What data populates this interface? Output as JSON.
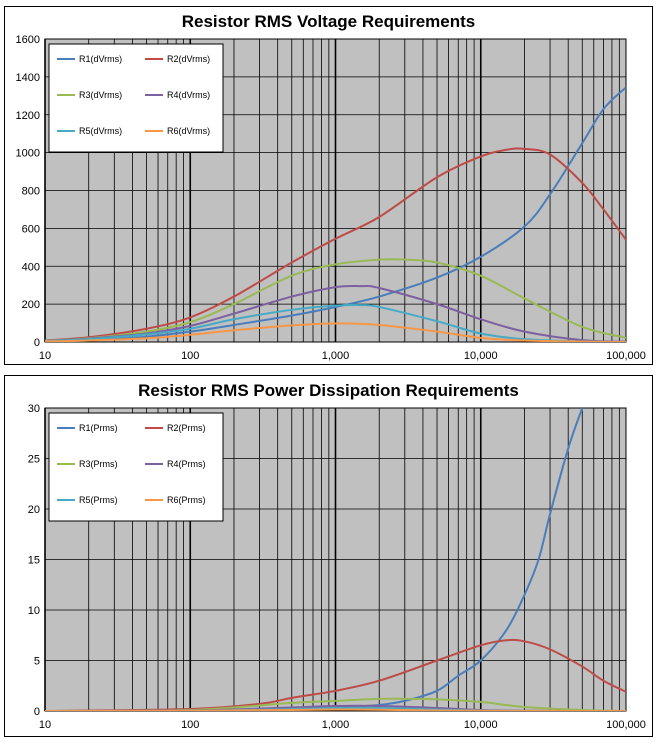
{
  "chart_data": [
    {
      "type": "line",
      "title": "Resistor RMS Voltage Requirements",
      "xscale": "log",
      "xlim": [
        10,
        100000
      ],
      "ylim": [
        0,
        1600
      ],
      "xticks": [
        10,
        100,
        1000,
        10000,
        100000
      ],
      "xtick_labels": [
        "10",
        "100",
        "1,000",
        "10,000",
        "100,000"
      ],
      "yticks": [
        0,
        200,
        400,
        600,
        800,
        1000,
        1200,
        1400,
        1600
      ],
      "ytick_labels": [
        "0",
        "200",
        "400",
        "600",
        "800",
        "1000",
        "1200",
        "1400",
        "1600"
      ],
      "grid": true,
      "legend_position": "top-left",
      "series": [
        {
          "name": "R1(dVrms)",
          "color": "#4a7ebb",
          "x": [
            10,
            20,
            50,
            100,
            200,
            500,
            1000,
            2000,
            5000,
            10000,
            20000,
            30000,
            50000,
            70000,
            100000
          ],
          "values": [
            3,
            8,
            28,
            55,
            90,
            140,
            185,
            240,
            340,
            450,
            610,
            780,
            1050,
            1230,
            1345
          ]
        },
        {
          "name": "R2(dVrms)",
          "color": "#be4b48",
          "x": [
            10,
            20,
            50,
            100,
            200,
            500,
            1000,
            2000,
            5000,
            10000,
            15000,
            20000,
            30000,
            50000,
            70000,
            100000
          ],
          "values": [
            8,
            25,
            70,
            130,
            240,
            420,
            545,
            660,
            870,
            980,
            1015,
            1020,
            990,
            840,
            700,
            540
          ]
        },
        {
          "name": "R3(dVrms)",
          "color": "#98b954",
          "x": [
            10,
            20,
            50,
            100,
            200,
            500,
            1000,
            2000,
            3000,
            5000,
            10000,
            20000,
            50000,
            100000
          ],
          "values": [
            7,
            20,
            55,
            105,
            200,
            350,
            410,
            435,
            435,
            420,
            350,
            230,
            80,
            22
          ]
        },
        {
          "name": "R4(dVrms)",
          "color": "#7d60a0",
          "x": [
            10,
            20,
            50,
            100,
            200,
            500,
            1000,
            1500,
            2000,
            5000,
            10000,
            20000,
            50000,
            100000
          ],
          "values": [
            6,
            18,
            45,
            85,
            150,
            240,
            290,
            295,
            285,
            200,
            120,
            55,
            10,
            2
          ]
        },
        {
          "name": "R5(dVrms)",
          "color": "#46aac5",
          "x": [
            10,
            20,
            50,
            100,
            200,
            500,
            1000,
            1500,
            2000,
            5000,
            10000,
            20000,
            50000,
            100000
          ],
          "values": [
            5,
            15,
            40,
            70,
            120,
            170,
            192,
            195,
            185,
            110,
            45,
            15,
            3,
            0
          ]
        },
        {
          "name": "R6(dVrms)",
          "color": "#f79646",
          "x": [
            10,
            20,
            50,
            100,
            200,
            500,
            1000,
            2000,
            5000,
            10000,
            20000,
            50000,
            100000
          ],
          "values": [
            3,
            8,
            20,
            38,
            62,
            88,
            98,
            90,
            55,
            22,
            8,
            2,
            0
          ]
        }
      ]
    },
    {
      "type": "line",
      "title": "Resistor RMS Power Dissipation Requirements",
      "xscale": "log",
      "xlim": [
        10,
        100000
      ],
      "ylim": [
        0,
        30
      ],
      "xticks": [
        10,
        100,
        1000,
        10000,
        100000
      ],
      "xtick_labels": [
        "10",
        "100",
        "1,000",
        "10,000",
        "100,000"
      ],
      "yticks": [
        0,
        5,
        10,
        15,
        20,
        25,
        30
      ],
      "ytick_labels": [
        "0",
        "5",
        "10",
        "15",
        "20",
        "25",
        "30"
      ],
      "grid": true,
      "legend_position": "top-left",
      "series": [
        {
          "name": "R1(Prms)",
          "color": "#4a7ebb",
          "x": [
            10,
            100,
            500,
            1000,
            2000,
            3000,
            5000,
            7000,
            10000,
            15000,
            20000,
            25000,
            30000,
            40000,
            50000
          ],
          "values": [
            0,
            0.05,
            0.2,
            0.35,
            0.6,
            1.0,
            2.0,
            3.5,
            5.0,
            8.0,
            11.5,
            15.0,
            19.5,
            26.0,
            30.0
          ]
        },
        {
          "name": "R2(Prms)",
          "color": "#be4b48",
          "x": [
            10,
            100,
            300,
            500,
            1000,
            2000,
            5000,
            10000,
            15000,
            20000,
            30000,
            50000,
            70000,
            100000
          ],
          "values": [
            0,
            0.2,
            0.7,
            1.3,
            2.0,
            3.0,
            5.0,
            6.5,
            7.0,
            6.9,
            6.1,
            4.4,
            3.0,
            1.9
          ]
        },
        {
          "name": "R3(Prms)",
          "color": "#98b954",
          "x": [
            10,
            100,
            500,
            1000,
            2000,
            3000,
            5000,
            10000,
            20000,
            50000,
            100000
          ],
          "values": [
            0,
            0.1,
            0.8,
            1.0,
            1.2,
            1.2,
            1.15,
            0.9,
            0.4,
            0.1,
            0
          ]
        },
        {
          "name": "R4(Prms)",
          "color": "#7d60a0",
          "x": [
            10,
            100,
            500,
            1000,
            2000,
            5000,
            10000,
            20000,
            50000,
            100000
          ],
          "values": [
            0,
            0.05,
            0.35,
            0.5,
            0.5,
            0.3,
            0.1,
            0.03,
            0,
            0
          ]
        },
        {
          "name": "R5(Prms)",
          "color": "#46aac5",
          "x": [
            10,
            100,
            500,
            1000,
            2000,
            5000,
            10000,
            20000,
            50000,
            100000
          ],
          "values": [
            0,
            0.03,
            0.2,
            0.3,
            0.3,
            0.15,
            0.05,
            0.01,
            0,
            0
          ]
        },
        {
          "name": "R6(Prms)",
          "color": "#f79646",
          "x": [
            10,
            100,
            500,
            1000,
            2000,
            5000,
            10000,
            50000,
            100000
          ],
          "values": [
            0,
            0.02,
            0.1,
            0.15,
            0.12,
            0.05,
            0.02,
            0,
            0
          ]
        }
      ]
    }
  ]
}
